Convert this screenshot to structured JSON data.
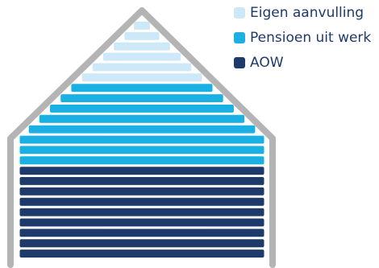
{
  "colors": {
    "outline": "#b4b4b4",
    "eigen": "#cde8f7",
    "pensioen": "#1ab0e3",
    "aow": "#1e3a6b"
  },
  "legend": [
    {
      "label": "Eigen aanvulling",
      "key": "eigen"
    },
    {
      "label": "Pensioen uit werk",
      "key": "pensioen"
    },
    {
      "label": "AOW",
      "key": "aow"
    }
  ],
  "layers": [
    "eigen",
    "eigen",
    "eigen",
    "eigen",
    "eigen",
    "eigen",
    "pensioen",
    "pensioen",
    "pensioen",
    "pensioen",
    "pensioen",
    "pensioen",
    "pensioen",
    "pensioen",
    "aow",
    "aow",
    "aow",
    "aow",
    "aow",
    "aow",
    "aow",
    "aow",
    "aow"
  ]
}
